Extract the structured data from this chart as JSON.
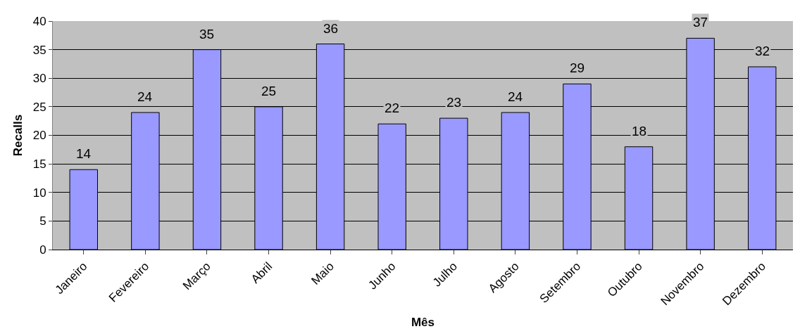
{
  "chart_data": {
    "type": "bar",
    "xlabel": "Mês",
    "ylabel": "Recalls",
    "categories": [
      "Janeiro",
      "Fevereiro",
      "Março",
      "Abril",
      "Maio",
      "Junho",
      "Julho",
      "Agosto",
      "Setembro",
      "Outubro",
      "Novembro",
      "Dezembro"
    ],
    "values": [
      14,
      24,
      35,
      25,
      36,
      22,
      23,
      24,
      29,
      18,
      37,
      32
    ],
    "color": "#9999ff",
    "ylim": [
      0,
      40
    ],
    "yticks": [
      0,
      5,
      10,
      15,
      20,
      25,
      30,
      35,
      40
    ],
    "grid": "y",
    "data_labels": true
  }
}
